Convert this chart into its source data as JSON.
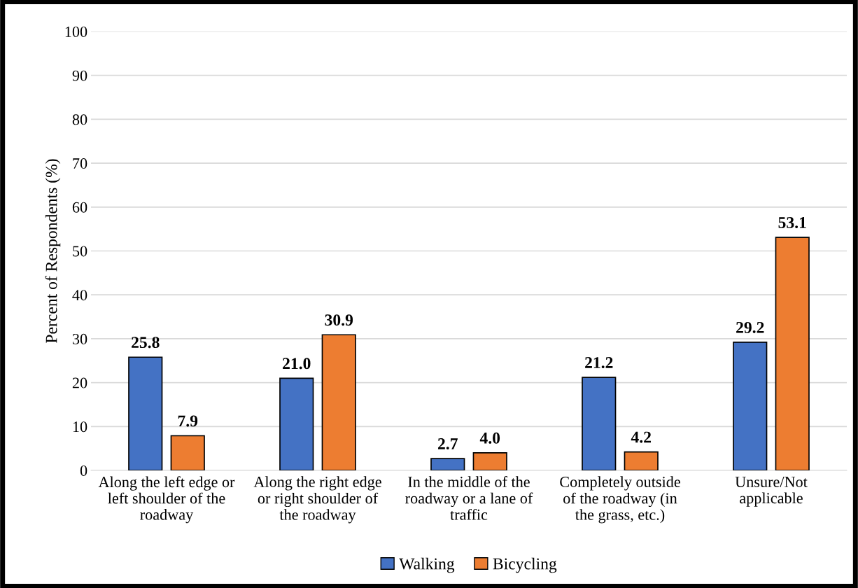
{
  "chart_data": {
    "type": "bar",
    "ylabel": "Percent of Respondents (%)",
    "categories": [
      "Along the left edge or\nleft shoulder of the\nroadway",
      "Along the right edge\nor right shoulder of\nthe roadway",
      "In the middle of the\nroadway or a lane of\ntraffic",
      "Completely outside\nof the roadway (in\nthe grass, etc.)",
      "Unsure/Not\napplicable"
    ],
    "series": [
      {
        "name": "Walking",
        "color": "#4472c4",
        "values": [
          25.8,
          21.0,
          2.7,
          21.2,
          29.2
        ]
      },
      {
        "name": "Bicycling",
        "color": "#ed7d31",
        "values": [
          7.9,
          30.9,
          4.0,
          4.2,
          53.1
        ]
      }
    ],
    "ylim": [
      0,
      100
    ],
    "yticks": [
      0,
      10,
      20,
      30,
      40,
      50,
      60,
      70,
      80,
      90,
      100
    ],
    "grid": "y",
    "legend": "bottom",
    "value_labels": [
      [
        "25.8",
        "21.0",
        "2.7",
        "21.2",
        "29.2"
      ],
      [
        "7.9",
        "30.9",
        "4.0",
        "4.2",
        "53.1"
      ]
    ]
  }
}
